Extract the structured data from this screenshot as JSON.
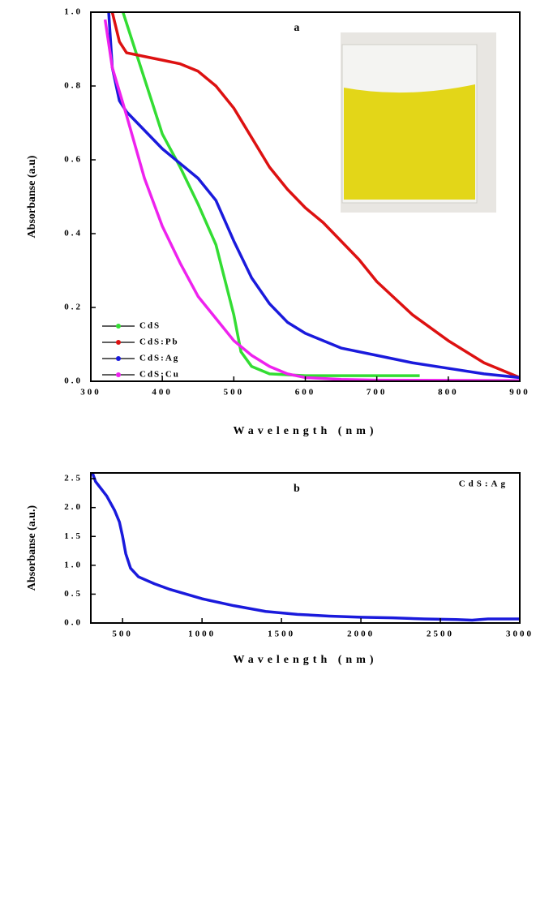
{
  "chart_data": [
    {
      "type": "line",
      "annotation": "a",
      "xlabel": "Wavelength (nm)",
      "ylabel": "Absorbanse (a.u)",
      "xlim": [
        300,
        900
      ],
      "xticks": [
        300,
        400,
        500,
        600,
        700,
        800,
        900
      ],
      "ylim": [
        0,
        1.0
      ],
      "yticks": [
        {
          "value": 0,
          "label": "0.0"
        },
        0.2,
        0.4,
        0.6,
        0.8,
        {
          "value": 1.0,
          "label": "1.0"
        }
      ],
      "legend": "lower left",
      "series": [
        {
          "name": "CdS",
          "color": "#33dd33",
          "x": [
            345,
            350,
            375,
            400,
            425,
            450,
            475,
            500,
            510,
            525,
            550,
            600,
            700,
            760
          ],
          "values": [
            1.0,
            0.97,
            0.82,
            0.67,
            0.58,
            0.48,
            0.37,
            0.18,
            0.08,
            0.04,
            0.02,
            0.015,
            0.015,
            0.015
          ]
        },
        {
          "name": "CdS:Pb",
          "color": "#dd1111",
          "x": [
            330,
            340,
            350,
            375,
            400,
            425,
            450,
            475,
            500,
            525,
            550,
            575,
            600,
            625,
            650,
            675,
            700,
            750,
            800,
            850,
            900
          ],
          "values": [
            1.0,
            0.92,
            0.89,
            0.88,
            0.87,
            0.86,
            0.84,
            0.8,
            0.74,
            0.66,
            0.58,
            0.52,
            0.47,
            0.43,
            0.38,
            0.33,
            0.27,
            0.18,
            0.11,
            0.05,
            0.01
          ]
        },
        {
          "name": "CdS:Ag",
          "color": "#1a1adc",
          "x": [
            325,
            330,
            340,
            350,
            375,
            400,
            425,
            450,
            475,
            500,
            525,
            550,
            575,
            600,
            650,
            700,
            750,
            800,
            850,
            900
          ],
          "values": [
            1.0,
            0.85,
            0.76,
            0.73,
            0.68,
            0.63,
            0.59,
            0.55,
            0.49,
            0.38,
            0.28,
            0.21,
            0.16,
            0.13,
            0.09,
            0.07,
            0.05,
            0.035,
            0.02,
            0.01
          ]
        },
        {
          "name": "CdS:Cu",
          "color": "#ee22ee",
          "x": [
            320,
            330,
            350,
            375,
            400,
            425,
            450,
            475,
            500,
            525,
            550,
            575,
            600,
            650,
            700,
            900
          ],
          "values": [
            0.98,
            0.85,
            0.72,
            0.55,
            0.42,
            0.32,
            0.23,
            0.17,
            0.11,
            0.07,
            0.04,
            0.02,
            0.01,
            0.005,
            0.003,
            0.002
          ]
        }
      ]
    },
    {
      "type": "line",
      "annotation": "b",
      "xlabel": "Wavelength (nm)",
      "ylabel": "Absorbanse (a.u.)",
      "xlim": [
        300,
        3000
      ],
      "xticks": [
        500,
        1000,
        1500,
        2000,
        2500,
        3000
      ],
      "ylim": [
        0,
        2.6
      ],
      "yticks": [
        {
          "value": 0,
          "label": "0.0"
        },
        0.5,
        {
          "value": 1.0,
          "label": "1.0"
        },
        1.5,
        {
          "value": 2.0,
          "label": "2.0"
        },
        2.5
      ],
      "legend": "upper right",
      "series": [
        {
          "name": "CdS:Ag",
          "color": "#1a1adc",
          "x": [
            310,
            330,
            400,
            450,
            480,
            500,
            520,
            550,
            600,
            700,
            800,
            1000,
            1200,
            1400,
            1600,
            1800,
            2000,
            2200,
            2400,
            2600,
            2700,
            2800,
            3000
          ],
          "values": [
            2.6,
            2.45,
            2.2,
            1.95,
            1.75,
            1.5,
            1.2,
            0.95,
            0.8,
            0.68,
            0.58,
            0.42,
            0.3,
            0.2,
            0.15,
            0.12,
            0.1,
            0.09,
            0.07,
            0.06,
            0.05,
            0.07,
            0.07
          ]
        }
      ]
    }
  ]
}
